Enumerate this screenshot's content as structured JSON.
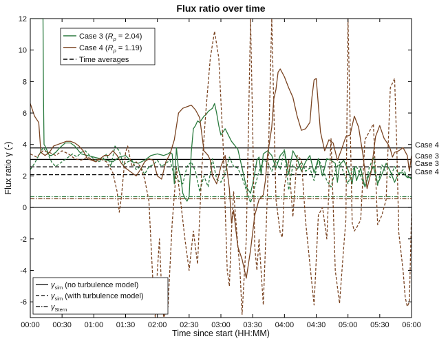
{
  "chart_data": {
    "type": "line",
    "title": "Flux ratio over time",
    "xlabel": "Time since start (HH:MM)",
    "ylabel": "Flux ratio γ (-)",
    "xlim": [
      0,
      360
    ],
    "ylim": [
      -7,
      12
    ],
    "x_tick_labels": [
      "00:00",
      "00:30",
      "01:00",
      "01:30",
      "02:00",
      "02:30",
      "03:00",
      "03:30",
      "04:00",
      "04:30",
      "05:00",
      "05:30",
      "06:00"
    ],
    "y_tick_labels": [
      "-6",
      "-4",
      "-2",
      "0",
      "2",
      "4",
      "6",
      "8",
      "10",
      "12"
    ],
    "grid": false,
    "colors": {
      "case3": "#2a7a3e",
      "case4": "#7a4422",
      "reference": "#000000"
    },
    "legend_top": {
      "placement": "top-left",
      "entries": [
        {
          "id": "case3",
          "text": "Case 3 (",
          "rho": "R",
          "rho_sub": "ρ",
          "value": " = 2.04)"
        },
        {
          "id": "case4",
          "text": "Case 4 (",
          "rho": "R",
          "rho_sub": "ρ",
          "value": " = 1.19)"
        },
        {
          "id": "avg",
          "text": "Time averages"
        }
      ]
    },
    "legend_bottom": {
      "placement": "bottom-left",
      "entries": [
        {
          "style": "solid",
          "symbol": "γ",
          "sub": "sim",
          "text": " (no turbulence model)"
        },
        {
          "style": "dashed",
          "symbol": "γ",
          "sub": "sim",
          "text": " (with turbulence model)"
        },
        {
          "style": "dashdot",
          "symbol": "γ",
          "sub": "Stern",
          "text": ""
        }
      ]
    },
    "time_averages": [
      {
        "label": "Case 4",
        "style": "solid",
        "value": 3.78
      },
      {
        "label": "Case 3",
        "style": "solid",
        "value": 3.05
      },
      {
        "label": "Case 3",
        "style": "dashed",
        "value": 2.58
      },
      {
        "label": "Case 4",
        "style": "dashed",
        "value": 2.08
      }
    ],
    "stern": [
      {
        "series": "case3",
        "value": 0.68
      },
      {
        "series": "case4",
        "value": 0.55
      }
    ],
    "zero_line": 0,
    "series": [
      {
        "name": "Case 3 (no turbulence model)",
        "key": "case3",
        "style": "solid",
        "x": [
          0,
          1,
          2,
          3,
          5,
          8,
          10,
          11,
          12,
          12.5,
          13,
          14,
          16,
          18,
          20,
          24,
          28,
          33,
          38,
          42,
          48,
          54,
          60,
          66,
          72,
          78,
          84,
          90,
          96,
          102,
          108,
          114,
          120,
          126,
          130,
          132,
          134,
          136,
          138,
          140,
          142,
          144,
          146,
          148,
          150,
          152,
          154,
          156,
          158,
          160,
          162,
          164,
          166,
          168,
          170,
          172,
          174,
          176,
          178,
          180,
          184,
          190,
          196,
          200,
          204,
          208,
          210,
          212,
          214,
          216,
          218,
          220,
          224,
          228,
          232,
          236,
          240,
          244,
          248,
          252,
          256,
          260,
          264,
          268,
          272,
          276,
          280,
          284,
          288,
          290,
          292,
          296,
          300,
          304,
          306,
          308,
          312,
          316,
          320,
          324,
          328,
          332,
          336,
          340,
          344,
          348,
          352,
          356,
          360
        ],
        "y": [
          12,
          12,
          12,
          12,
          12,
          12,
          12,
          12,
          12,
          7,
          4,
          3.9,
          3.6,
          3.3,
          3.3,
          3.5,
          3.8,
          4.1,
          4.1,
          3.9,
          3.4,
          3.3,
          3.2,
          3.1,
          3.0,
          2.9,
          3.2,
          3.3,
          2.9,
          2.8,
          3.0,
          3.3,
          3.4,
          3.3,
          3.4,
          3.5,
          3.4,
          1.5,
          3.8,
          2.4,
          2.0,
          0.9,
          0.6,
          0.4,
          0.7,
          3.5,
          5.0,
          5.2,
          5.5,
          5.4,
          5.6,
          5.8,
          5.9,
          6.1,
          6.2,
          6.3,
          6.6,
          6.0,
          5.2,
          4.6,
          5.0,
          4.2,
          3.7,
          2.5,
          1.3,
          0.9,
          1.5,
          2.2,
          3.0,
          3.2,
          2.1,
          3.4,
          3.6,
          3.3,
          2.5,
          3.3,
          3.6,
          2.1,
          3.6,
          3.1,
          2.3,
          2.9,
          3.3,
          2.2,
          3.1,
          2.0,
          3.1,
          3.0,
          2.8,
          1.6,
          2.7,
          3.0,
          2.4,
          1.5,
          2.6,
          1.7,
          2.5,
          1.3,
          2.1,
          2.6,
          1.5,
          2.1,
          2.8,
          2.3,
          1.6,
          2.2,
          2.2,
          1.9,
          1.9
        ]
      },
      {
        "name": "Case 3 (with turbulence model)",
        "key": "case3",
        "style": "dashed",
        "x": [
          0,
          4,
          8,
          12,
          16,
          20,
          24,
          28,
          32,
          36,
          40,
          44,
          48,
          52,
          56,
          60,
          64,
          68,
          72,
          76,
          80,
          84,
          88,
          92,
          96,
          100,
          104,
          108,
          112,
          116,
          120,
          124,
          128,
          132,
          136,
          140,
          144,
          148,
          152,
          156,
          160,
          164,
          168,
          172,
          176,
          180,
          184,
          188,
          192,
          196,
          200,
          204,
          208,
          212,
          216,
          220,
          224,
          228,
          232,
          236,
          240,
          244,
          248,
          252,
          256,
          260,
          264,
          268,
          272,
          276,
          280,
          284,
          288,
          292,
          296,
          300,
          304,
          308,
          312,
          316,
          320,
          324,
          328,
          332,
          336,
          340,
          344,
          348,
          352,
          356,
          360
        ],
        "y": [
          2.4,
          2.8,
          3.3,
          3.8,
          3.5,
          2.9,
          2.6,
          2.8,
          3.0,
          3.2,
          3.4,
          3.2,
          3.5,
          3.6,
          3.3,
          3.1,
          2.9,
          3.0,
          3.4,
          2.6,
          3.9,
          3.6,
          2.7,
          2.9,
          3.0,
          2.4,
          2.6,
          2.1,
          2.6,
          2.7,
          3.0,
          2.6,
          2.8,
          3.0,
          2.0,
          1.7,
          1.5,
          2.6,
          2.9,
          2.3,
          1.0,
          2.0,
          1.3,
          3.1,
          1.8,
          1.6,
          2.2,
          3.2,
          2.6,
          2.5,
          1.9,
          1.1,
          0.3,
          1.3,
          2.3,
          3.0,
          2.9,
          2.3,
          3.0,
          2.4,
          3.7,
          1.1,
          2.7,
          2.4,
          2.9,
          2.3,
          2.5,
          1.7,
          3.1,
          2.5,
          1.7,
          1.3,
          2.3,
          2.9,
          2.2,
          1.5,
          2.4,
          2.6,
          2.0,
          1.3,
          2.5,
          3.2,
          1.4,
          2.7,
          2.2,
          1.9,
          2.6,
          2.1,
          2.4,
          2.0,
          1.8
        ]
      },
      {
        "name": "Case 4 (no turbulence model)",
        "key": "case4",
        "style": "solid",
        "x": [
          0,
          4,
          8,
          10,
          14,
          18,
          22,
          26,
          30,
          34,
          38,
          42,
          46,
          50,
          54,
          58,
          62,
          66,
          70,
          74,
          78,
          82,
          86,
          90,
          94,
          98,
          100,
          104,
          108,
          112,
          116,
          120,
          124,
          128,
          132,
          136,
          140,
          144,
          148,
          152,
          156,
          160,
          164,
          168,
          170,
          172,
          176,
          180,
          184,
          188,
          190,
          192,
          196,
          200,
          204,
          208,
          212,
          216,
          220,
          222,
          224,
          228,
          230,
          232,
          234,
          236,
          240,
          244,
          248,
          252,
          256,
          260,
          264,
          266,
          268,
          270,
          274,
          278,
          282,
          286,
          290,
          294,
          298,
          302,
          306,
          310,
          314,
          318,
          322,
          326,
          330,
          334,
          338,
          340,
          342,
          344,
          348,
          352,
          356,
          358,
          360
        ],
        "y": [
          6.6,
          5.8,
          5.4,
          3.5,
          3.3,
          3.5,
          3.9,
          4.0,
          4.1,
          4.2,
          4.2,
          4.1,
          3.9,
          3.6,
          3.1,
          3.0,
          2.9,
          3.1,
          3.3,
          3.3,
          3.6,
          3.3,
          2.8,
          2.5,
          2.3,
          2.1,
          2.0,
          2.4,
          2.9,
          3.1,
          3.0,
          2.0,
          1.8,
          2.9,
          3.4,
          4.3,
          6.0,
          6.3,
          6.4,
          6.5,
          6.2,
          5.7,
          3.6,
          3.3,
          3.0,
          2.0,
          1.5,
          2.6,
          3.3,
          1.2,
          -1.0,
          -0.2,
          -2.5,
          -3.3,
          -4.5,
          -2.7,
          -0.5,
          0.5,
          0.8,
          1.7,
          3.3,
          5.1,
          6.9,
          7.5,
          8.6,
          8.8,
          8.3,
          7.6,
          7.0,
          5.8,
          4.9,
          5.0,
          5.4,
          7.0,
          8.1,
          8.2,
          4.8,
          3.6,
          4.3,
          4.1,
          3.0,
          3.7,
          4.5,
          4.6,
          5.8,
          5.1,
          3.4,
          1.2,
          2.3,
          4.5,
          5.2,
          4.4,
          4.0,
          3.7,
          3.2,
          3.5,
          3.6,
          3.8,
          3.3,
          2.3,
          3.3
        ]
      },
      {
        "name": "Case 4 (with turbulence model)",
        "key": "case4",
        "style": "dashed",
        "x": [
          0,
          6,
          12,
          18,
          24,
          30,
          36,
          42,
          48,
          54,
          60,
          66,
          72,
          78,
          82,
          84,
          86,
          88,
          90,
          92,
          94,
          96,
          100,
          104,
          108,
          112,
          116,
          118,
          120,
          122,
          124,
          126,
          130,
          134,
          138,
          140,
          142,
          146,
          150,
          154,
          158,
          162,
          166,
          170,
          174,
          178,
          182,
          186,
          188,
          190,
          192,
          196,
          198,
          200,
          204,
          208,
          210,
          212,
          214,
          216,
          220,
          224,
          228,
          232,
          236,
          238,
          240,
          244,
          248,
          252,
          256,
          260,
          264,
          268,
          272,
          276,
          280,
          284,
          288,
          292,
          296,
          298,
          300,
          304,
          306,
          308,
          312,
          316,
          320,
          324,
          328,
          332,
          336,
          340,
          344,
          346,
          348,
          352,
          354,
          356,
          358,
          360
        ],
        "y": [
          3.4,
          3.2,
          3.6,
          3.5,
          3.3,
          3.6,
          3.4,
          3.1,
          3.0,
          3.2,
          3.0,
          3.1,
          2.9,
          2.2,
          1.0,
          -0.3,
          0.6,
          2.1,
          3.5,
          3.9,
          3.2,
          2.6,
          2.9,
          2.6,
          1.8,
          0.4,
          -5.0,
          -7.0,
          -4.0,
          -2.0,
          -5.2,
          -7.0,
          -6.3,
          -1.0,
          2.5,
          1.5,
          0.4,
          -2.0,
          -4.0,
          -1.5,
          -3.6,
          2.5,
          6.3,
          9.5,
          11.2,
          9.5,
          4.1,
          -4.0,
          -5.0,
          -1.5,
          1.0,
          -2.4,
          -4.0,
          -6.8,
          -2.0,
          12.0,
          5.0,
          -2.5,
          -4.0,
          -2.0,
          -6.2,
          1.0,
          12.0,
          0.5,
          -1.6,
          -1.9,
          1.3,
          3.0,
          -0.6,
          3.3,
          3.0,
          -0.9,
          -3.6,
          -6.2,
          -0.5,
          0.0,
          -2.0,
          4.4,
          -4.0,
          -6.1,
          -2.5,
          -0.8,
          12.0,
          -1.0,
          -1.5,
          -1.3,
          -0.8,
          4.3,
          4.8,
          5.3,
          -1.1,
          -0.5,
          0.5,
          7.6,
          8.2,
          4.0,
          -1.6,
          -4.0,
          -5.7,
          -6.3,
          -6.0,
          -0.3
        ]
      }
    ]
  }
}
